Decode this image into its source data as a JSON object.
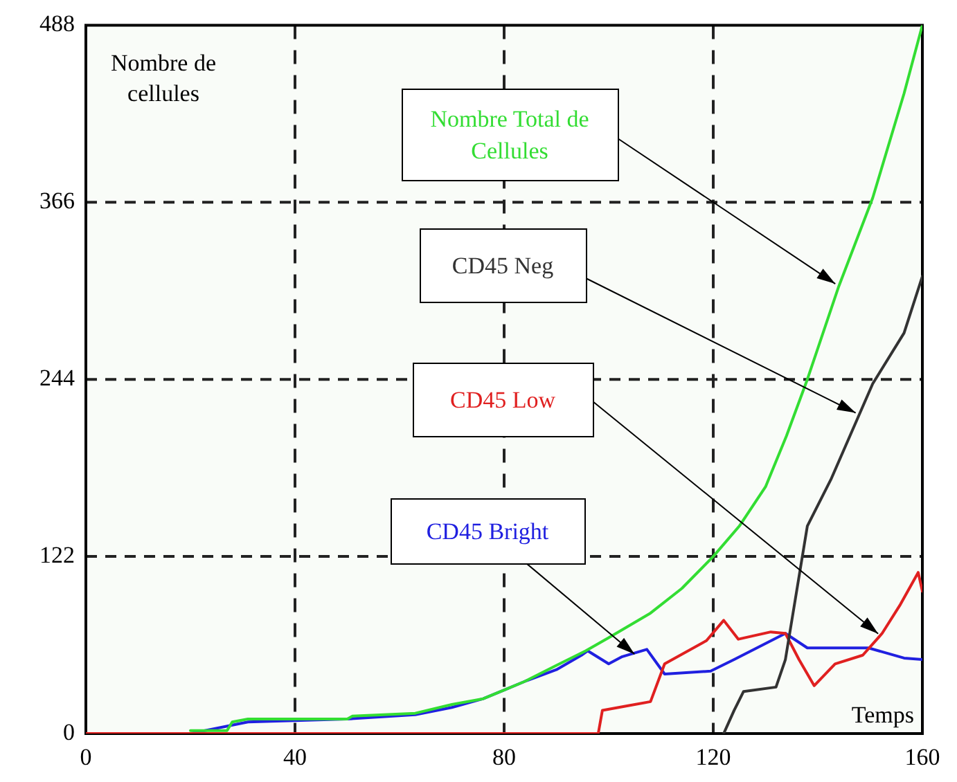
{
  "chart_data": {
    "type": "line",
    "xlabel": "Temps",
    "ylabel": "Nombre de cellules",
    "xlim": [
      0,
      160
    ],
    "xticks": [
      0,
      40,
      80,
      120,
      160
    ],
    "ylim": [
      0,
      488
    ],
    "yticks": [
      0,
      122,
      244,
      366,
      488
    ],
    "grid": true,
    "legend": false,
    "marker": "none",
    "line_style": "solid",
    "series": [
      {
        "name": "Nombre Total de Cellules",
        "color": "#33dd33",
        "x": [
          20,
          27,
          28,
          31,
          50,
          51,
          63,
          70,
          76,
          80,
          84,
          90,
          95.6,
          100,
          108,
          114,
          120,
          125,
          130,
          134,
          138,
          144,
          150.5,
          156.5,
          160
        ],
        "values": [
          2,
          2,
          8,
          10,
          10,
          12,
          14,
          20,
          24,
          30,
          36,
          47,
          57,
          66,
          83,
          100,
          122,
          143,
          170,
          205,
          244,
          308,
          369,
          441,
          488
        ]
      },
      {
        "name": "CD45 Neg",
        "color": "#333333",
        "x": [
          122,
          124,
          125.8,
          132,
          133.8,
          138,
          142.5,
          150.5,
          156.5,
          160
        ],
        "values": [
          0,
          16,
          29,
          32,
          51,
          143,
          175,
          241,
          276,
          315
        ]
      },
      {
        "name": "CD45 Low",
        "color": "#e02020",
        "x": [
          0,
          98,
          98.8,
          108,
          110.7,
          118.7,
          122,
          124.8,
          131,
          133.8,
          136.4,
          139.3,
          143.3,
          148.6,
          152.3,
          155.8,
          159.2,
          160
        ],
        "values": [
          0,
          0,
          16,
          22,
          48,
          64,
          78,
          65,
          70,
          69,
          51,
          33,
          48,
          54,
          69,
          89,
          111,
          98
        ]
      },
      {
        "name": "CD45 Bright",
        "color": "#2020e0",
        "x": [
          20,
          31,
          50,
          63,
          70,
          76,
          80,
          84,
          90,
          94.8,
          96,
          100,
          102.6,
          107.3,
          110.7,
          119.5,
          124,
          133.8,
          138,
          149.7,
          156.5,
          160
        ],
        "values": [
          0,
          8,
          10,
          13,
          18,
          24,
          30,
          36,
          44,
          54,
          57,
          48,
          53,
          58,
          41,
          43,
          51,
          69,
          59,
          59,
          52,
          51
        ]
      }
    ]
  }
}
